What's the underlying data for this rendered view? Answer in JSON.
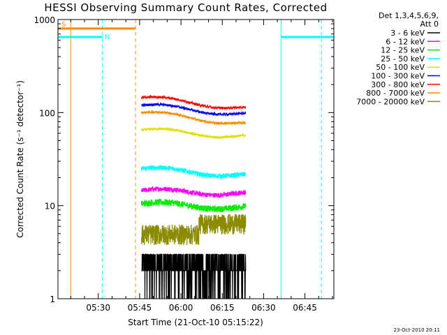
{
  "chart_data": {
    "type": "line",
    "title": "HESSI Observing Summary Count Rates, Corrected",
    "xlabel": "Start Time (21-Oct-10 05:15:22)",
    "ylabel": "Corrected Count Rate (s⁻¹ detector⁻¹)",
    "yscale": "log",
    "ylim": [
      1,
      1000
    ],
    "xlim": [
      "05:15:22",
      "06:55:30"
    ],
    "x_tick_labels": [
      "05:30",
      "05:45",
      "06:00",
      "06:15",
      "06:30",
      "06:45"
    ],
    "x_tick_values": [
      "05:30",
      "05:45",
      "06:00",
      "06:15",
      "06:30",
      "06:45"
    ],
    "y_tick_labels": [
      "1",
      "10",
      "100",
      "1000"
    ],
    "y_tick_values": [
      1,
      10,
      100,
      1000
    ],
    "legend_header": [
      "Det 1,3,4,5,6,9,",
      "Att 0"
    ],
    "legend_position": "right",
    "series": [
      {
        "name": "3 - 6 keV",
        "color": "#000000",
        "level_start": 2.0,
        "level_end": 2.0,
        "noise": 0.35
      },
      {
        "name": "6 - 12 keV",
        "color": "#ff00ff",
        "level_start": 14.5,
        "level_end": 13.5,
        "noise": 0.06
      },
      {
        "name": "12 - 25 keV",
        "color": "#00ee00",
        "level_start": 10.5,
        "level_end": 9.5,
        "noise": 0.08
      },
      {
        "name": "25 - 50 keV",
        "color": "#00ffff",
        "level_start": 25.0,
        "level_end": 21.0,
        "noise": 0.06
      },
      {
        "name": "50 - 100 keV",
        "color": "#e0e000",
        "level_start": 65.0,
        "level_end": 55.0,
        "noise": 0.03
      },
      {
        "name": "100 - 300 keV",
        "color": "#0000ff",
        "level_start": 120.0,
        "level_end": 95.0,
        "noise": 0.03
      },
      {
        "name": "300 - 800 keV",
        "color": "#ff0000",
        "level_start": 145.0,
        "level_end": 110.0,
        "noise": 0.03
      },
      {
        "name": "800 - 7000 keV",
        "color": "#ff8c00",
        "level_start": 100.0,
        "level_end": 75.0,
        "noise": 0.03
      },
      {
        "name": "7000 - 20000 keV",
        "color": "#8b8b00",
        "level_start": 5.0,
        "level_end": 5.5,
        "noise": 0.12
      }
    ],
    "data_interval": [
      "05:45:40",
      "06:23:30"
    ],
    "flags": [
      {
        "label": "S",
        "color": "#ff8c00",
        "start": "05:15:22",
        "end": "05:43:30",
        "level": 800
      },
      {
        "label": "N",
        "color": "#00ffff",
        "start": "05:15:22",
        "end": "05:31:30",
        "level": 650
      },
      {
        "label": "",
        "color": "#00ffff",
        "start": "06:36:20",
        "end": "06:55:30",
        "level": 650
      }
    ],
    "vertical_lines": [
      {
        "time": "05:20:00",
        "color": "#ff8c00",
        "style": "solid"
      },
      {
        "time": "05:31:30",
        "color": "#00ffff",
        "style": "dashed"
      },
      {
        "time": "05:43:30",
        "color": "#ff8c00",
        "style": "dashed"
      },
      {
        "time": "06:36:20",
        "color": "#00ffff",
        "style": "solid"
      },
      {
        "time": "06:51:00",
        "color": "#00ffff",
        "style": "dashed"
      }
    ]
  },
  "footer_date": "23-Oct-2010 20:11"
}
